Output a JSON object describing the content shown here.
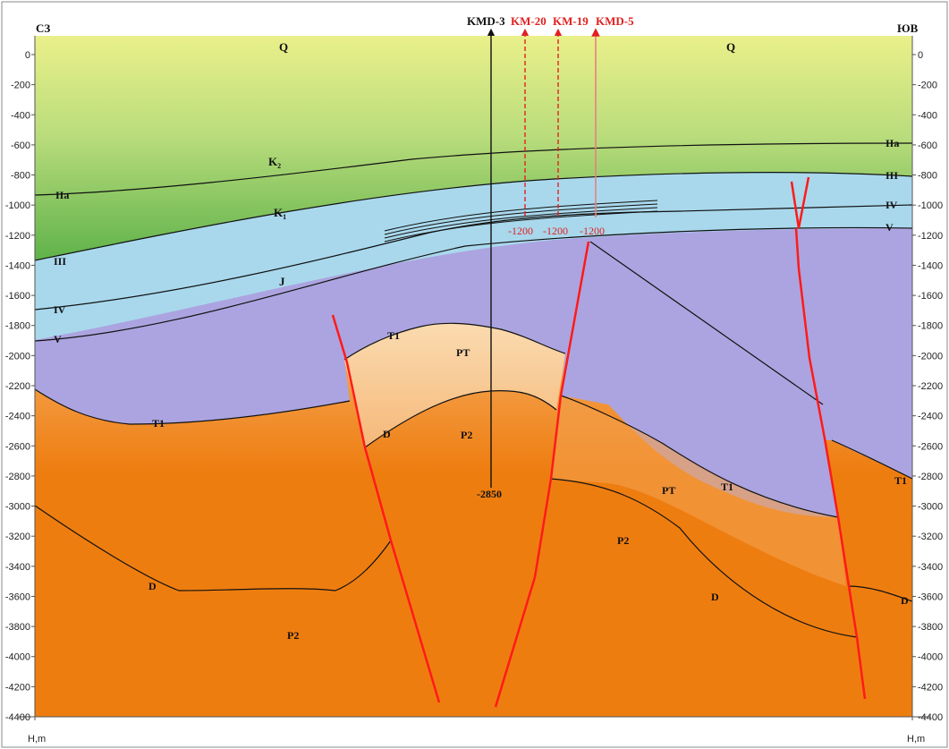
{
  "headings": {
    "left": "СЗ",
    "right": "ЮВ"
  },
  "wells": {
    "kmd3": "KMD-3",
    "km20": "KM-20",
    "km19": "KM-19",
    "kmd5": "KMD-5",
    "kmd3_depth": "-2850",
    "km20_depth": "-1200",
    "km19_depth": "-1200",
    "kmd5_depth": "-1200"
  },
  "depth_axis": {
    "left_ticks": [
      "0",
      "-200",
      "-400",
      "-600",
      "-800",
      "-1000",
      "-1200",
      "-1400",
      "-1600",
      "-1800",
      "-2000",
      "-2200",
      "-2400",
      "-2600",
      "-2800",
      "-3000",
      "-3200",
      "-3400",
      "-3600",
      "-3800",
      "-4000",
      "-4200",
      "-4400"
    ],
    "right_ticks": [
      "0",
      "-200",
      "-400",
      "-600",
      "-800",
      "-1000",
      "-1200",
      "-1400",
      "-1600",
      "-1800",
      "-2000",
      "-2200",
      "-2400",
      "-2600",
      "-2800",
      "-3000",
      "-3200",
      "-3400",
      "-3600",
      "-3800",
      "-4000",
      "-4200",
      "-4400"
    ],
    "bottom_left": "H,m",
    "bottom_right": "H,m"
  },
  "horizons": {
    "IIa_left": "IIa",
    "III_left": "III",
    "IV_left": "IV",
    "V_left": "V",
    "IIa_right": "IIa",
    "III_right": "III",
    "IV_right": "IV",
    "V_right": "V"
  },
  "units": {
    "Q_left": "Q",
    "Q_right": "Q",
    "K2": "K",
    "K2_sub": "2",
    "K1": "K",
    "K1_sub": "1",
    "J": "J",
    "T1_dome": "T1",
    "PT_dome": "PT",
    "D_dome": "D",
    "P2_dome": "P2",
    "T1_left": "T1",
    "D_left": "D",
    "P2_left": "P2",
    "PT_right": "PT",
    "T1_mid": "T1",
    "P2_right": "P2",
    "D_right": "D",
    "T1_far": "T1",
    "D_far": "D"
  },
  "colors": {
    "quaternary_top": "#eaf08a",
    "quaternary_mid": "#b9dc7c",
    "k2_bottom": "#5fb24a",
    "blue": "#a9d8ec",
    "purple": "#aca4e0",
    "dome_top": "#fadbb0",
    "dome_bottom": "#f6b879",
    "orange_top": "#f5a95a",
    "orange": "#ee7d10",
    "fault": "#ff1a1a",
    "well_red": "#e32020"
  }
}
